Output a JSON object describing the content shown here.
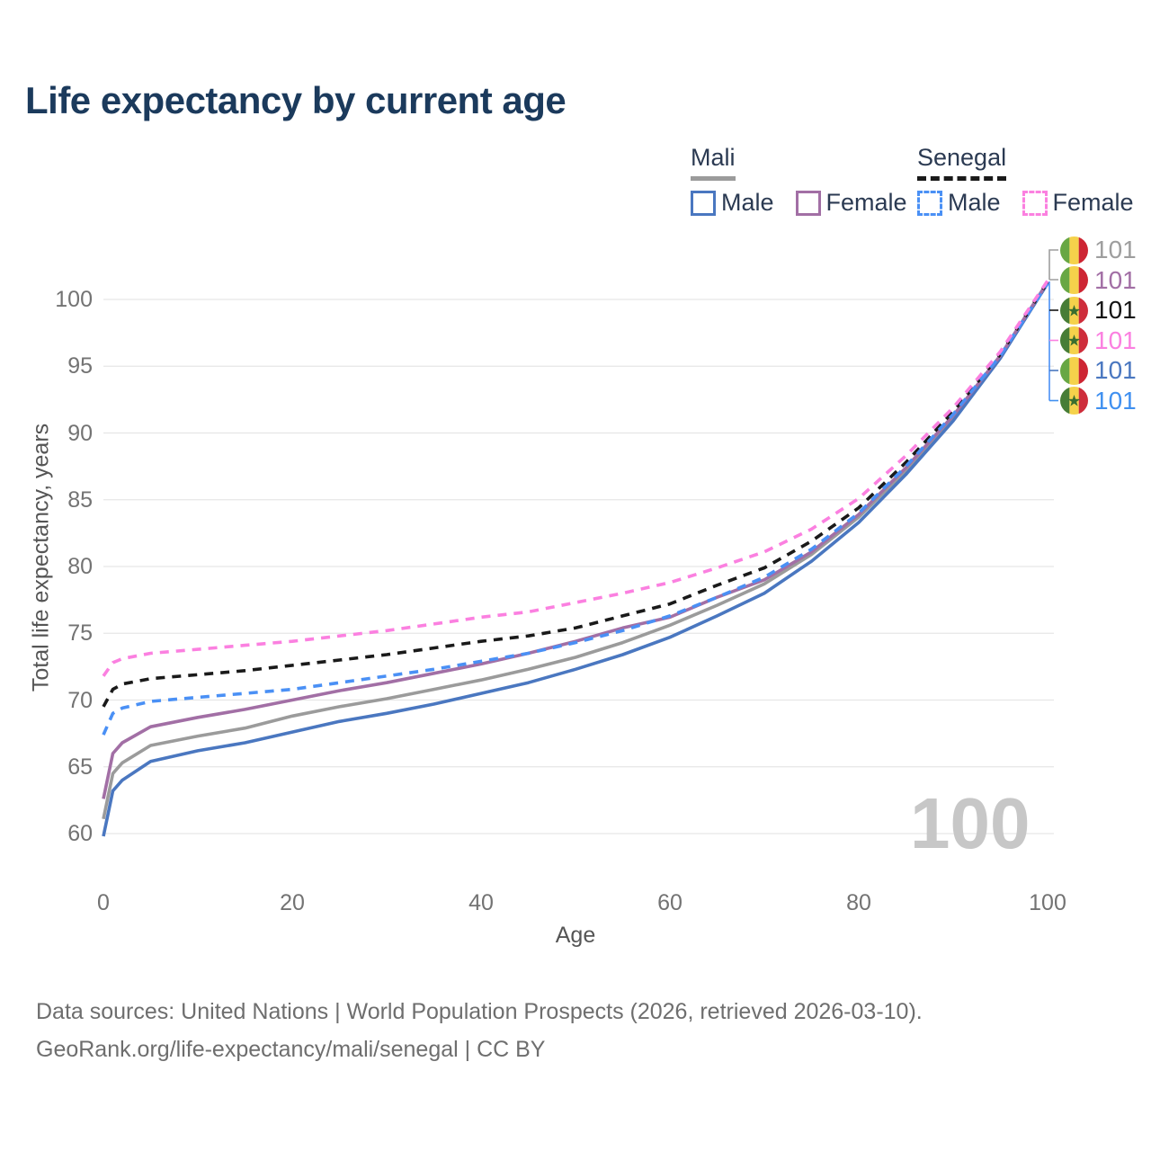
{
  "title": "Life expectancy by current age",
  "legend": {
    "groups": [
      {
        "label": "Mali",
        "underline_color": "#9b9b9b",
        "underline_style": "solid",
        "items": [
          {
            "label": "Male",
            "color": "#4a77c0",
            "dashed": false
          },
          {
            "label": "Female",
            "color": "#a26fa5",
            "dashed": false
          }
        ]
      },
      {
        "label": "Senegal",
        "underline_color": "#1a1a1a",
        "underline_style": "dashed",
        "items": [
          {
            "label": "Male",
            "color": "#4a90f5",
            "dashed": true
          },
          {
            "label": "Female",
            "color": "#fb80e0",
            "dashed": true
          }
        ]
      }
    ]
  },
  "chart_data": {
    "type": "line",
    "title": "Life expectancy by current age",
    "xlabel": "Age",
    "ylabel": "Total life expectancy, years",
    "xlim": [
      0,
      100
    ],
    "ylim": [
      60,
      101.5
    ],
    "x_ticks": [
      0,
      20,
      40,
      60,
      80,
      100
    ],
    "y_ticks": [
      60,
      65,
      70,
      75,
      80,
      85,
      90,
      95,
      100
    ],
    "grid": "horizontal",
    "x": [
      0,
      1,
      2,
      5,
      10,
      15,
      20,
      25,
      30,
      35,
      40,
      45,
      50,
      55,
      60,
      65,
      70,
      75,
      80,
      85,
      90,
      95,
      100
    ],
    "series": [
      {
        "name": "Mali",
        "sex": "Total",
        "color": "#9b9b9b",
        "dashed": false,
        "end_label": "101",
        "values": [
          61.1,
          64.5,
          65.3,
          66.6,
          67.3,
          67.9,
          68.8,
          69.5,
          70.1,
          70.8,
          71.5,
          72.3,
          73.2,
          74.3,
          75.6,
          77.1,
          78.7,
          80.9,
          83.7,
          87.2,
          91.1,
          95.7,
          101.2
        ]
      },
      {
        "name": "Mali Male",
        "sex": "Male",
        "color": "#4a77c0",
        "dashed": false,
        "end_label": "101",
        "values": [
          59.8,
          63.2,
          64.0,
          65.4,
          66.2,
          66.8,
          67.6,
          68.4,
          69.0,
          69.7,
          70.5,
          71.3,
          72.3,
          73.4,
          74.7,
          76.3,
          78.0,
          80.4,
          83.3,
          86.9,
          90.9,
          95.6,
          101.2
        ]
      },
      {
        "name": "Mali Female",
        "sex": "Female",
        "color": "#a26fa5",
        "dashed": false,
        "end_label": "101",
        "values": [
          62.6,
          66.0,
          66.8,
          68.0,
          68.7,
          69.3,
          70.0,
          70.7,
          71.3,
          72.0,
          72.7,
          73.5,
          74.4,
          75.4,
          76.2,
          77.7,
          79.0,
          81.1,
          83.9,
          87.4,
          91.3,
          95.8,
          101.3
        ]
      },
      {
        "name": "Senegal",
        "sex": "Total",
        "color": "#1a1a1a",
        "dashed": true,
        "end_label": "101",
        "values": [
          69.5,
          70.8,
          71.2,
          71.6,
          71.9,
          72.2,
          72.6,
          73.0,
          73.4,
          73.9,
          74.4,
          74.8,
          75.4,
          76.3,
          77.2,
          78.6,
          79.9,
          81.9,
          84.4,
          87.8,
          91.6,
          95.9,
          101.3
        ]
      },
      {
        "name": "Senegal Male",
        "sex": "Male",
        "color": "#4a90f5",
        "dashed": true,
        "end_label": "101",
        "values": [
          67.4,
          69.0,
          69.4,
          69.9,
          70.2,
          70.5,
          70.8,
          71.3,
          71.8,
          72.3,
          72.9,
          73.5,
          74.3,
          75.2,
          76.3,
          77.7,
          79.2,
          81.3,
          84.0,
          87.5,
          91.4,
          95.8,
          101.2
        ]
      },
      {
        "name": "Senegal Female",
        "sex": "Female",
        "color": "#fb80e0",
        "dashed": true,
        "end_label": "101",
        "values": [
          71.8,
          72.8,
          73.1,
          73.5,
          73.8,
          74.1,
          74.4,
          74.8,
          75.2,
          75.7,
          76.2,
          76.6,
          77.3,
          78.0,
          78.8,
          79.9,
          81.1,
          82.8,
          85.1,
          88.3,
          91.9,
          96.1,
          101.4
        ]
      }
    ],
    "legend_position": "top-right"
  },
  "right_labels": [
    {
      "series": "Mali",
      "flag": "mali",
      "value": "101",
      "color": "#9e9e9e"
    },
    {
      "series": "Mali Female",
      "flag": "mali",
      "value": "101",
      "color": "#a26fa5"
    },
    {
      "series": "Senegal",
      "flag": "senegal",
      "value": "101",
      "color": "#141414"
    },
    {
      "series": "Senegal Female",
      "flag": "senegal",
      "value": "101",
      "color": "#fb80e0"
    },
    {
      "series": "Mali Male",
      "flag": "mali",
      "value": "101",
      "color": "#4a77c0"
    },
    {
      "series": "Senegal Male",
      "flag": "senegal",
      "value": "101",
      "color": "#4090f0"
    }
  ],
  "watermark": "100",
  "footer": {
    "line1": "Data sources: United Nations | World Population Prospects (2026, retrieved 2026-03-10).",
    "line2": "GeoRank.org/life-expectancy/mali/senegal | CC BY"
  },
  "flag_colors": {
    "mali": {
      "bands": [
        "#68a744",
        "#f5d24b",
        "#cd2533"
      ]
    },
    "senegal": {
      "bands": [
        "#477d36",
        "#f5d24b",
        "#ce2d3b"
      ],
      "star": "#3a6e2f"
    }
  }
}
